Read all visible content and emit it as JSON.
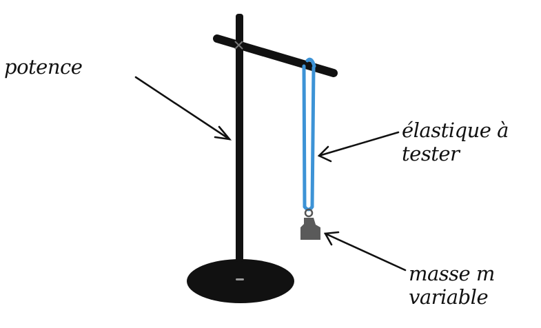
{
  "labels": {
    "potence": "potence",
    "elastique_line1": "élastique à",
    "elastique_line2": "tester",
    "masse_line1": "masse m",
    "masse_line2": "variable"
  },
  "colors": {
    "stand": "#111111",
    "elastic": "#3d93d6",
    "mass": "#5a5a5a",
    "ink": "#111111"
  }
}
